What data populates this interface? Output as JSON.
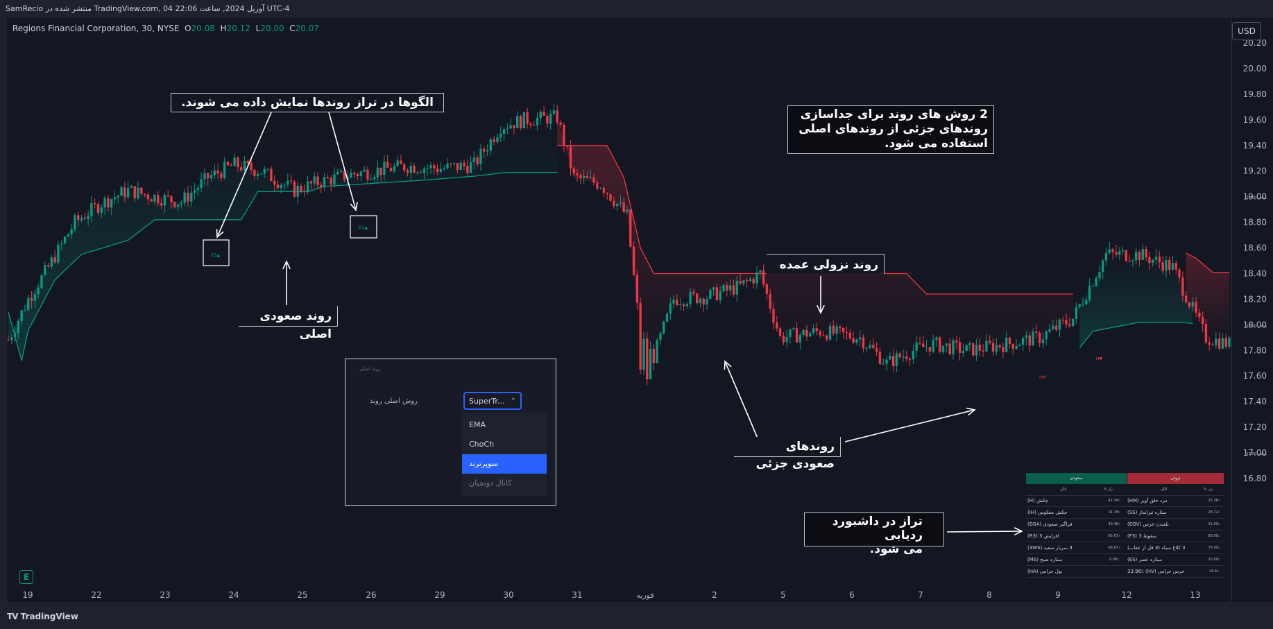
{
  "header": {
    "publish_line": "SamRecio منتشر شده در TradingView.com, 04 آوریل 2024, ساعت 22:06 UTC-4"
  },
  "symbol": {
    "name": "Regions Financial Corporation, 30, NYSE",
    "open_label": "O",
    "open": "20.08",
    "high_label": "H",
    "high": "20.12",
    "low_label": "L",
    "low": "20.00",
    "close_label": "C",
    "close": "20.07"
  },
  "currency": "USD",
  "brand": "TradingView",
  "colors": {
    "up": "#089981",
    "down": "#f23645",
    "band_up": "#089981",
    "band_down": "#f23645",
    "background": "#131722"
  },
  "annotations": {
    "patterns": "الگوها در تراز روندها نمایش داده می شوند.",
    "two_methods_1": "2 روش های روند برای جداسازی",
    "two_methods_2": "روندهای جزئی از روندهای اصلی",
    "two_methods_3": "استفاده می شود.",
    "main_up": "روند صعودی اصلی",
    "major_down": "روند نزولی عمده",
    "minor_up": "روندهای صعودی جزئی",
    "dashboard_1": "تراز در داشبورد ردیابی",
    "dashboard_2": "می شود."
  },
  "chart_labels": {
    "ega": "EG▲",
    "hv": "H▼",
    "hm": "HM"
  },
  "settings_panel": {
    "header": "روند اصلی",
    "label": "روش اصلی روند",
    "selected": "SuperTr...",
    "options": [
      "EMA",
      "ChoCh",
      "سوپرترند",
      "کانال دونچیان"
    ]
  },
  "dashboard": {
    "bull_title": "صعودی",
    "bear_title": "نزولی",
    "col_pattern": "الگو",
    "col_align": "تراز %",
    "rows": [
      {
        "bull": "چکش (H)",
        "bull_pct": "42.34٪",
        "bear": "مرد حلق آویز (HM)",
        "bear_pct": "25.36٪"
      },
      {
        "bull": "چکش معکوس (IH)",
        "bull_pct": "14.78٪",
        "bear": "ستاره تیرانداز (SS)",
        "bear_pct": "28.72٪"
      },
      {
        "bull": "فراگیر صعودی (EGA)",
        "bull_pct": "40.46٪",
        "bear": "بلعیدن خرس (EGV)",
        "bear_pct": "31.60٪"
      },
      {
        "bull": "افزایش 3 (R3)",
        "bull_pct": "66.67٪",
        "bear": "سقوط 3 (F3)",
        "bear_pct": "80.00٪"
      },
      {
        "bull": "3 سرباز سفید (3WS)",
        "bull_pct": "66.67٪",
        "bear": "3 کلاغ سیاه (3 قل از عقاب)",
        "bear_pct": "75.00٪"
      },
      {
        "bull": "ستاره صبح (MS)",
        "bull_pct": "0.00٪",
        "bear": "ستاره عصر (ES)",
        "bear_pct": "20.00٪"
      },
      {
        "bull": "بول حرامی (HA)",
        "bull_pct": "",
        "bear": "خرس حرامی (HV) 33.96٪",
        "bear_pct": "29.6٪"
      }
    ]
  },
  "chart_data": {
    "type": "candlestick",
    "title": "Regions Financial Corporation, 30, NYSE",
    "interval": "30",
    "y_axis": {
      "ticks": [
        "20.20",
        "20.00",
        "19.80",
        "19.60",
        "19.40",
        "19.20",
        "19.00",
        "18.80",
        "18.60",
        "18.40",
        "18.20",
        "18.00",
        "17.80",
        "17.60",
        "17.40",
        "17.20",
        "17.00",
        "16.80"
      ],
      "range": [
        16.72,
        20.28
      ],
      "small_labels": [
        {
          "value": 19.0,
          "text": "19.00 ساعت"
        },
        {
          "value": 18.0,
          "text": "18.00 ساعت"
        },
        {
          "value": 17.0,
          "text": "17.00 ساعت"
        }
      ]
    },
    "x_axis": {
      "ticks": [
        "19",
        "22",
        "23",
        "24",
        "25",
        "26",
        "29",
        "30",
        "31",
        "فوریه",
        "2",
        "5",
        "6",
        "7",
        "8",
        "9",
        "12",
        "13"
      ]
    },
    "supertrend_up": [
      [
        0,
        18.1
      ],
      [
        4,
        17.72
      ],
      [
        6,
        17.96
      ],
      [
        14,
        18.35
      ],
      [
        22,
        18.55
      ],
      [
        36,
        18.66
      ],
      [
        44,
        18.82
      ],
      [
        70,
        18.82
      ],
      [
        75,
        19.04
      ],
      [
        90,
        19.04
      ],
      [
        95,
        19.08
      ],
      [
        125,
        19.13
      ],
      [
        140,
        19.16
      ],
      [
        150,
        19.19
      ],
      [
        165,
        19.19
      ]
    ],
    "supertrend_down": [
      [
        165,
        19.4
      ],
      [
        180,
        19.4
      ],
      [
        185,
        19.15
      ],
      [
        190,
        18.6
      ],
      [
        194,
        18.4
      ],
      [
        270,
        18.4
      ],
      [
        276,
        18.24
      ],
      [
        320,
        18.24
      ]
    ],
    "supertrend_up2": [
      [
        322,
        17.82
      ],
      [
        326,
        17.95
      ],
      [
        340,
        18.02
      ],
      [
        352,
        18.02
      ],
      [
        356,
        18.01
      ]
    ],
    "supertrend_down2": [
      [
        354,
        18.56
      ],
      [
        357,
        18.52
      ],
      [
        362,
        18.41
      ],
      [
        367,
        18.41
      ]
    ],
    "ohlc_sampled": [
      {
        "i": 0,
        "c": 17.88
      },
      {
        "i": 6,
        "c": 18.2
      },
      {
        "i": 12,
        "c": 18.45
      },
      {
        "i": 20,
        "c": 18.8
      },
      {
        "i": 28,
        "c": 18.95
      },
      {
        "i": 36,
        "c": 19.05
      },
      {
        "i": 44,
        "c": 19.0
      },
      {
        "i": 52,
        "c": 18.96
      },
      {
        "i": 60,
        "c": 19.15
      },
      {
        "i": 68,
        "c": 19.25
      },
      {
        "i": 76,
        "c": 19.2
      },
      {
        "i": 86,
        "c": 19.05
      },
      {
        "i": 94,
        "c": 19.12
      },
      {
        "i": 104,
        "c": 19.18
      },
      {
        "i": 120,
        "c": 19.24
      },
      {
        "i": 130,
        "c": 19.22
      },
      {
        "i": 140,
        "c": 19.25
      },
      {
        "i": 148,
        "c": 19.55
      },
      {
        "i": 155,
        "c": 19.6
      },
      {
        "i": 165,
        "c": 19.62
      },
      {
        "i": 170,
        "c": 19.15
      },
      {
        "i": 178,
        "c": 19.1
      },
      {
        "i": 186,
        "c": 18.85
      },
      {
        "i": 190,
        "c": 17.9
      },
      {
        "i": 194,
        "c": 17.75
      },
      {
        "i": 200,
        "c": 18.2
      },
      {
        "i": 210,
        "c": 18.22
      },
      {
        "i": 220,
        "c": 18.3
      },
      {
        "i": 226,
        "c": 18.4
      },
      {
        "i": 232,
        "c": 17.9
      },
      {
        "i": 244,
        "c": 17.95
      },
      {
        "i": 256,
        "c": 17.9
      },
      {
        "i": 264,
        "c": 17.7
      },
      {
        "i": 272,
        "c": 17.8
      },
      {
        "i": 278,
        "c": 17.85
      },
      {
        "i": 288,
        "c": 17.8
      },
      {
        "i": 300,
        "c": 17.85
      },
      {
        "i": 310,
        "c": 17.9
      },
      {
        "i": 320,
        "c": 18.05
      },
      {
        "i": 330,
        "c": 18.55
      },
      {
        "i": 340,
        "c": 18.55
      },
      {
        "i": 350,
        "c": 18.45
      },
      {
        "i": 360,
        "c": 17.9
      },
      {
        "i": 367,
        "c": 17.85
      }
    ]
  }
}
